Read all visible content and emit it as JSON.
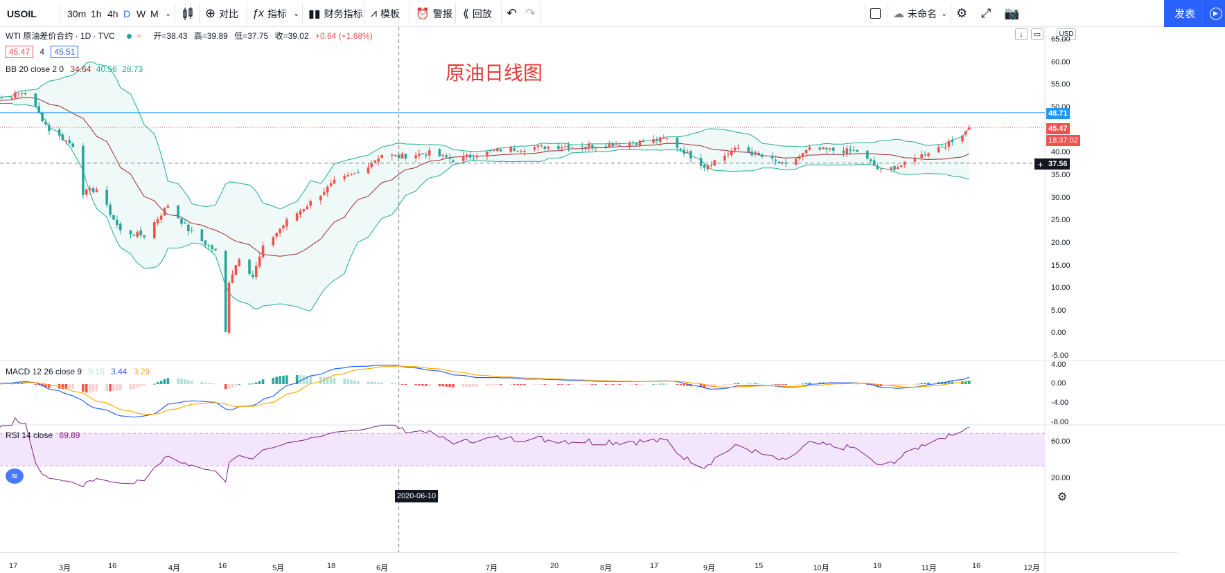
{
  "toolbar": {
    "symbol": "USOIL",
    "intervals": [
      "30m",
      "1h",
      "4h",
      "D",
      "W",
      "M"
    ],
    "active_interval": "D",
    "compare": "对比",
    "indicators": "指标",
    "financials": "财务指标",
    "templates": "模板",
    "alert": "警报",
    "replay": "回放",
    "layout_name": "未命名",
    "publish": "发表"
  },
  "legend": {
    "title": "WTI 原油差价合约 · 1D · TVC",
    "open_label": "开=38.43",
    "high_label": "高=39.89",
    "low_label": "低=37.75",
    "close_label": "收=39.02",
    "change": "+0.64 (+1.68%)",
    "bid": "45.47",
    "spread": "4",
    "ask": "45.51",
    "bb_label": "BB 20 close 2 0",
    "bb_basis": "34.64",
    "bb_upper": "40.56",
    "bb_lower": "28.73",
    "macd_label": "MACD 12 26 close 9",
    "macd_hist": "0.15",
    "macd_line": "3.44",
    "macd_signal": "3.29",
    "rsi_label": "RSI 14 close",
    "rsi_value": "69.89"
  },
  "annotation": "原油日线图",
  "price_axis": {
    "unit": "USD",
    "labels": [
      "65.00",
      "60.00",
      "55.00",
      "50.00",
      "45.00",
      "40.00",
      "35.00",
      "30.00",
      "25.00",
      "20.00",
      "15.00",
      "10.00",
      "5.00",
      "0.00",
      "-5.00"
    ],
    "tag_blue": "48.71",
    "tag_last": "45.47",
    "tag_countdown": "18:37:02",
    "tag_cross": "37.56"
  },
  "macd_axis": {
    "labels": [
      "4.00",
      "0.00",
      "-4.00",
      "-8.00"
    ]
  },
  "rsi_axis": {
    "labels": [
      "60.00",
      "20.00"
    ]
  },
  "time_axis": {
    "labels": [
      "17",
      "3月",
      "16",
      "4月",
      "16",
      "5月",
      "18",
      "6月",
      "7月",
      "20",
      "8月",
      "17",
      "9月",
      "15",
      "10月",
      "19",
      "11月",
      "16",
      "12月"
    ],
    "crosshair_date": "2020-06-10"
  },
  "colors": {
    "up": "#ef5350",
    "down": "#26a69a",
    "bb_band": "#22ab94",
    "bb_basis": "#9c2b2b",
    "macd_line": "#2962ff",
    "signal_line": "#ffab00",
    "rsi_line": "#7e1f86",
    "rsi_fill": "#f3e5fb",
    "annotation": "#e53935",
    "accent": "#2962ff"
  },
  "chart_data": {
    "type": "candlestick",
    "symbol": "USOIL",
    "ylim": [
      -5,
      65
    ],
    "key_levels": {
      "horizontal_line": 48.71,
      "last_price": 45.47,
      "crosshair_price": 37.56
    },
    "price_series": [
      {
        "date": "2020-02-07",
        "close": 51.0
      },
      {
        "date": "2020-02-14",
        "close": 52.0
      },
      {
        "date": "2020-02-21",
        "close": 53.3
      },
      {
        "date": "2020-02-28",
        "close": 45.0
      },
      {
        "date": "2020-03-06",
        "close": 41.5
      },
      {
        "date": "2020-03-09",
        "close": 31.0
      },
      {
        "date": "2020-03-13",
        "close": 31.8
      },
      {
        "date": "2020-03-20",
        "close": 22.5
      },
      {
        "date": "2020-03-27",
        "close": 21.5
      },
      {
        "date": "2020-04-03",
        "close": 28.3
      },
      {
        "date": "2020-04-09",
        "close": 22.8
      },
      {
        "date": "2020-04-17",
        "close": 18.0
      },
      {
        "date": "2020-04-20",
        "close": 0.0
      },
      {
        "date": "2020-04-21",
        "close": 11.5
      },
      {
        "date": "2020-04-24",
        "close": 16.8
      },
      {
        "date": "2020-04-28",
        "close": 12.5
      },
      {
        "date": "2020-05-01",
        "close": 18.8
      },
      {
        "date": "2020-05-08",
        "close": 24.7
      },
      {
        "date": "2020-05-15",
        "close": 28.9
      },
      {
        "date": "2020-05-22",
        "close": 33.3
      },
      {
        "date": "2020-05-29",
        "close": 35.4
      },
      {
        "date": "2020-06-05",
        "close": 39.5
      },
      {
        "date": "2020-06-10",
        "close": 39.0
      },
      {
        "date": "2020-06-19",
        "close": 39.8
      },
      {
        "date": "2020-06-26",
        "close": 38.3
      },
      {
        "date": "2020-07-10",
        "close": 40.5
      },
      {
        "date": "2020-07-24",
        "close": 41.2
      },
      {
        "date": "2020-08-07",
        "close": 41.5
      },
      {
        "date": "2020-08-21",
        "close": 42.3
      },
      {
        "date": "2020-08-28",
        "close": 42.9
      },
      {
        "date": "2020-09-08",
        "close": 36.9
      },
      {
        "date": "2020-09-18",
        "close": 40.9
      },
      {
        "date": "2020-10-02",
        "close": 37.0
      },
      {
        "date": "2020-10-09",
        "close": 40.6
      },
      {
        "date": "2020-10-23",
        "close": 40.2
      },
      {
        "date": "2020-10-30",
        "close": 35.7
      },
      {
        "date": "2020-11-06",
        "close": 37.3
      },
      {
        "date": "2020-11-13",
        "close": 40.1
      },
      {
        "date": "2020-11-20",
        "close": 42.2
      },
      {
        "date": "2020-11-25",
        "close": 45.47
      }
    ]
  }
}
